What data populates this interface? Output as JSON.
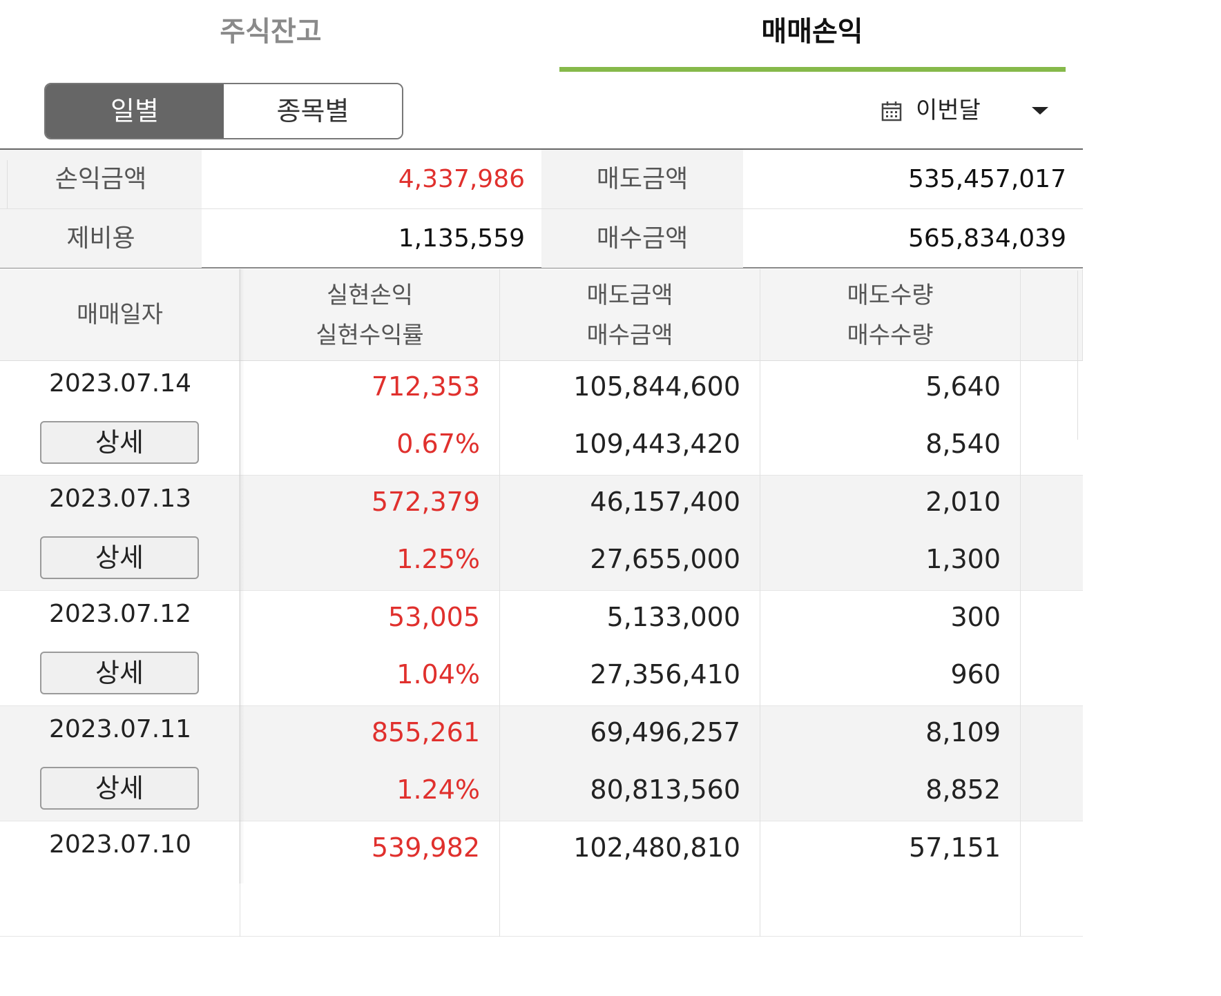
{
  "tabs": [
    {
      "label": "주식잔고",
      "active": false
    },
    {
      "label": "매매손익",
      "active": true
    }
  ],
  "colors": {
    "accent": "#86b94a",
    "profit": "#e0302d",
    "segment_active": "#666666"
  },
  "segment": {
    "daily": "일별",
    "by_stock": "종목별"
  },
  "period": {
    "icon": "calendar-icon",
    "selected": "이번달"
  },
  "summary": {
    "profit_label": "손익금액",
    "profit_value": "4,337,986",
    "sell_label": "매도금액",
    "sell_value": "535,457,017",
    "fee_label": "제비용",
    "fee_value": "1,135,559",
    "buy_label": "매수금액",
    "buy_value": "565,834,039"
  },
  "table": {
    "headers": {
      "date": "매매일자",
      "realized_pl": "실현손익",
      "realized_rate": "실현수익률",
      "sell_amount": "매도금액",
      "buy_amount": "매수금액",
      "sell_qty": "매도수량",
      "buy_qty": "매수수량"
    },
    "detail_label": "상세",
    "rows": [
      {
        "date": "2023.07.14",
        "pl": "712,353",
        "rate": "0.67%",
        "sell_amt": "105,844,600",
        "buy_amt": "109,443,420",
        "sell_qty": "5,640",
        "buy_qty": "8,540"
      },
      {
        "date": "2023.07.13",
        "pl": "572,379",
        "rate": "1.25%",
        "sell_amt": "46,157,400",
        "buy_amt": "27,655,000",
        "sell_qty": "2,010",
        "buy_qty": "1,300"
      },
      {
        "date": "2023.07.12",
        "pl": "53,005",
        "rate": "1.04%",
        "sell_amt": "5,133,000",
        "buy_amt": "27,356,410",
        "sell_qty": "300",
        "buy_qty": "960"
      },
      {
        "date": "2023.07.11",
        "pl": "855,261",
        "rate": "1.24%",
        "sell_amt": "69,496,257",
        "buy_amt": "80,813,560",
        "sell_qty": "8,109",
        "buy_qty": "8,852"
      },
      {
        "date": "2023.07.10",
        "pl": "539,982",
        "rate": "",
        "sell_amt": "102,480,810",
        "buy_amt": "",
        "sell_qty": "57,151",
        "buy_qty": ""
      }
    ]
  }
}
